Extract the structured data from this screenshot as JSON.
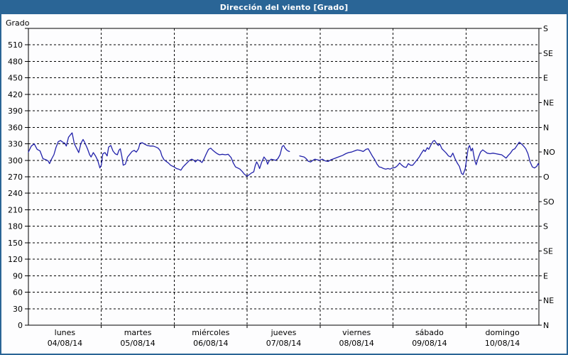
{
  "window": {
    "title": "Dirección del viento [Grado]"
  },
  "chart_data": {
    "type": "line",
    "title": "Dirección del viento [Grado]",
    "ylabel_left": "Grado",
    "y_left": {
      "min": 0,
      "max": 540,
      "tick_step": 30,
      "tick_labels": [
        0,
        30,
        60,
        90,
        120,
        150,
        180,
        210,
        240,
        270,
        300,
        330,
        360,
        390,
        420,
        450,
        480,
        510
      ]
    },
    "y_right": {
      "tick_step": 45,
      "ticks": [
        {
          "deg": 540,
          "label": "S"
        },
        {
          "deg": 495,
          "label": "SE"
        },
        {
          "deg": 450,
          "label": "E"
        },
        {
          "deg": 405,
          "label": "NE"
        },
        {
          "deg": 360,
          "label": "N"
        },
        {
          "deg": 315,
          "label": "NO"
        },
        {
          "deg": 270,
          "label": "O"
        },
        {
          "deg": 225,
          "label": "SO"
        },
        {
          "deg": 180,
          "label": "S"
        },
        {
          "deg": 135,
          "label": "SE"
        },
        {
          "deg": 90,
          "label": "E"
        },
        {
          "deg": 45,
          "label": "NE"
        },
        {
          "deg": 0,
          "label": "N"
        }
      ]
    },
    "x": {
      "range_days": [
        0,
        7
      ],
      "days": [
        {
          "name": "lunes",
          "date": "04/08/14"
        },
        {
          "name": "martes",
          "date": "05/08/14"
        },
        {
          "name": "miércoles",
          "date": "06/08/14"
        },
        {
          "name": "jueves",
          "date": "07/08/14"
        },
        {
          "name": "viernes",
          "date": "08/08/14"
        },
        {
          "name": "sábado",
          "date": "09/08/14"
        },
        {
          "name": "domingo",
          "date": "10/08/14"
        }
      ]
    },
    "grid": {
      "style": "dashed",
      "color": "#000000",
      "horizontal_step_deg": 30,
      "vertical": "per-day"
    },
    "colors": {
      "series": "#2222aa",
      "frame": "#000000",
      "titlebar": "#2a6596",
      "background": "#fdfdfe"
    },
    "series": [
      {
        "name": "Dirección del viento",
        "unit": "Grado",
        "points": [
          [
            0.0,
            315
          ],
          [
            0.04,
            326
          ],
          [
            0.08,
            330
          ],
          [
            0.12,
            320
          ],
          [
            0.16,
            317
          ],
          [
            0.2,
            303
          ],
          [
            0.24,
            301
          ],
          [
            0.27,
            299
          ],
          [
            0.29,
            294
          ],
          [
            0.32,
            303
          ],
          [
            0.35,
            310
          ],
          [
            0.38,
            324
          ],
          [
            0.41,
            334
          ],
          [
            0.44,
            336
          ],
          [
            0.47,
            333
          ],
          [
            0.5,
            331
          ],
          [
            0.52,
            326
          ],
          [
            0.55,
            342
          ],
          [
            0.58,
            347
          ],
          [
            0.6,
            350
          ],
          [
            0.63,
            330
          ],
          [
            0.66,
            322
          ],
          [
            0.69,
            314
          ],
          [
            0.72,
            331
          ],
          [
            0.75,
            338
          ],
          [
            0.77,
            333
          ],
          [
            0.81,
            321
          ],
          [
            0.84,
            310
          ],
          [
            0.86,
            306
          ],
          [
            0.89,
            314
          ],
          [
            0.92,
            308
          ],
          [
            0.95,
            300
          ],
          [
            0.98,
            286
          ],
          [
            1.0,
            291
          ],
          [
            1.02,
            312
          ],
          [
            1.05,
            314
          ],
          [
            1.08,
            308
          ],
          [
            1.1,
            324
          ],
          [
            1.13,
            327
          ],
          [
            1.16,
            317
          ],
          [
            1.19,
            312
          ],
          [
            1.22,
            310
          ],
          [
            1.24,
            318
          ],
          [
            1.26,
            321
          ],
          [
            1.28,
            308
          ],
          [
            1.3,
            291
          ],
          [
            1.33,
            293
          ],
          [
            1.36,
            306
          ],
          [
            1.39,
            311
          ],
          [
            1.42,
            316
          ],
          [
            1.45,
            318
          ],
          [
            1.48,
            315
          ],
          [
            1.51,
            321
          ],
          [
            1.53,
            331
          ],
          [
            1.56,
            332
          ],
          [
            1.6,
            329
          ],
          [
            1.63,
            327
          ],
          [
            1.67,
            326
          ],
          [
            1.71,
            326
          ],
          [
            1.75,
            324
          ],
          [
            1.78,
            322
          ],
          [
            1.81,
            317
          ],
          [
            1.83,
            308
          ],
          [
            1.86,
            301
          ],
          [
            1.89,
            298
          ],
          [
            1.92,
            295
          ],
          [
            1.95,
            291
          ],
          [
            1.98,
            289
          ],
          [
            2.0,
            288
          ],
          [
            2.03,
            285
          ],
          [
            2.06,
            284
          ],
          [
            2.09,
            282
          ],
          [
            2.12,
            288
          ],
          [
            2.15,
            292
          ],
          [
            2.18,
            296
          ],
          [
            2.21,
            300
          ],
          [
            2.24,
            302
          ],
          [
            2.27,
            300
          ],
          [
            2.29,
            297
          ],
          [
            2.32,
            301
          ],
          [
            2.35,
            299
          ],
          [
            2.38,
            296
          ],
          [
            2.41,
            303
          ],
          [
            2.44,
            312
          ],
          [
            2.47,
            320
          ],
          [
            2.5,
            322
          ],
          [
            2.53,
            318
          ],
          [
            2.56,
            315
          ],
          [
            2.59,
            312
          ],
          [
            2.62,
            310
          ],
          [
            2.66,
            311
          ],
          [
            2.7,
            310
          ],
          [
            2.74,
            311
          ],
          [
            2.78,
            305
          ],
          [
            2.81,
            295
          ],
          [
            2.84,
            288
          ],
          [
            2.87,
            286
          ],
          [
            2.9,
            284
          ],
          [
            2.93,
            280
          ],
          [
            2.96,
            275
          ],
          [
            2.99,
            272
          ],
          [
            3.0,
            271
          ],
          [
            3.03,
            274
          ],
          [
            3.06,
            277
          ],
          [
            3.09,
            279
          ],
          [
            3.11,
            290
          ],
          [
            3.13,
            297
          ],
          [
            3.15,
            292
          ],
          [
            3.17,
            285
          ],
          [
            3.2,
            297
          ],
          [
            3.23,
            306
          ],
          [
            3.26,
            301
          ],
          [
            3.28,
            293
          ],
          [
            3.3,
            299
          ],
          [
            3.33,
            302
          ],
          [
            3.36,
            301
          ],
          [
            3.39,
            300
          ],
          [
            3.42,
            303
          ],
          [
            3.45,
            310
          ],
          [
            3.48,
            325
          ],
          [
            3.5,
            327
          ],
          [
            3.52,
            322
          ],
          [
            3.54,
            319
          ],
          [
            3.56,
            317
          ],
          [
            3.58,
            316
          ],
          [
            3.65,
            null
          ],
          [
            3.72,
            308
          ],
          [
            3.75,
            307
          ],
          [
            3.78,
            306
          ],
          [
            3.81,
            303
          ],
          [
            3.84,
            298
          ],
          [
            3.87,
            297
          ],
          [
            3.9,
            300
          ],
          [
            3.93,
            302
          ],
          [
            3.96,
            301
          ],
          [
            3.99,
            300
          ],
          [
            4.03,
            302
          ],
          [
            4.07,
            299
          ],
          [
            4.11,
            298
          ],
          [
            4.15,
            301
          ],
          [
            4.19,
            303
          ],
          [
            4.23,
            305
          ],
          [
            4.27,
            307
          ],
          [
            4.31,
            309
          ],
          [
            4.35,
            312
          ],
          [
            4.39,
            314
          ],
          [
            4.43,
            315
          ],
          [
            4.47,
            317
          ],
          [
            4.51,
            319
          ],
          [
            4.55,
            318
          ],
          [
            4.59,
            316
          ],
          [
            4.63,
            320
          ],
          [
            4.66,
            321
          ],
          [
            4.69,
            314
          ],
          [
            4.72,
            307
          ],
          [
            4.75,
            301
          ],
          [
            4.78,
            293
          ],
          [
            4.81,
            288
          ],
          [
            4.84,
            287
          ],
          [
            4.87,
            285
          ],
          [
            4.9,
            284
          ],
          [
            4.93,
            285
          ],
          [
            4.96,
            284
          ],
          [
            4.99,
            286
          ],
          [
            5.03,
            287
          ],
          [
            5.06,
            290
          ],
          [
            5.09,
            295
          ],
          [
            5.12,
            291
          ],
          [
            5.15,
            288
          ],
          [
            5.18,
            287
          ],
          [
            5.21,
            294
          ],
          [
            5.24,
            291
          ],
          [
            5.27,
            291
          ],
          [
            5.3,
            296
          ],
          [
            5.33,
            301
          ],
          [
            5.36,
            306
          ],
          [
            5.39,
            313
          ],
          [
            5.42,
            319
          ],
          [
            5.44,
            316
          ],
          [
            5.47,
            323
          ],
          [
            5.49,
            320
          ],
          [
            5.52,
            328
          ],
          [
            5.55,
            335
          ],
          [
            5.57,
            336
          ],
          [
            5.6,
            330
          ],
          [
            5.62,
            327
          ],
          [
            5.64,
            330
          ],
          [
            5.67,
            321
          ],
          [
            5.7,
            317
          ],
          [
            5.73,
            313
          ],
          [
            5.76,
            308
          ],
          [
            5.79,
            306
          ],
          [
            5.82,
            313
          ],
          [
            5.85,
            303
          ],
          [
            5.88,
            295
          ],
          [
            5.91,
            289
          ],
          [
            5.94,
            276
          ],
          [
            5.96,
            274
          ],
          [
            5.99,
            285
          ],
          [
            6.0,
            294
          ],
          [
            6.03,
            322
          ],
          [
            6.05,
            327
          ],
          [
            6.07,
            317
          ],
          [
            6.09,
            322
          ],
          [
            6.12,
            300
          ],
          [
            6.14,
            292
          ],
          [
            6.17,
            305
          ],
          [
            6.2,
            315
          ],
          [
            6.23,
            319
          ],
          [
            6.26,
            316
          ],
          [
            6.29,
            313
          ],
          [
            6.33,
            312
          ],
          [
            6.37,
            313
          ],
          [
            6.41,
            312
          ],
          [
            6.45,
            311
          ],
          [
            6.49,
            310
          ],
          [
            6.52,
            307
          ],
          [
            6.55,
            304
          ],
          [
            6.58,
            309
          ],
          [
            6.61,
            313
          ],
          [
            6.64,
            319
          ],
          [
            6.67,
            321
          ],
          [
            6.7,
            327
          ],
          [
            6.73,
            333
          ],
          [
            6.76,
            330
          ],
          [
            6.79,
            326
          ],
          [
            6.82,
            321
          ],
          [
            6.85,
            312
          ],
          [
            6.88,
            297
          ],
          [
            6.91,
            288
          ],
          [
            6.94,
            286
          ],
          [
            6.97,
            289
          ],
          [
            6.99,
            294
          ],
          [
            7.0,
            291
          ]
        ]
      }
    ]
  }
}
